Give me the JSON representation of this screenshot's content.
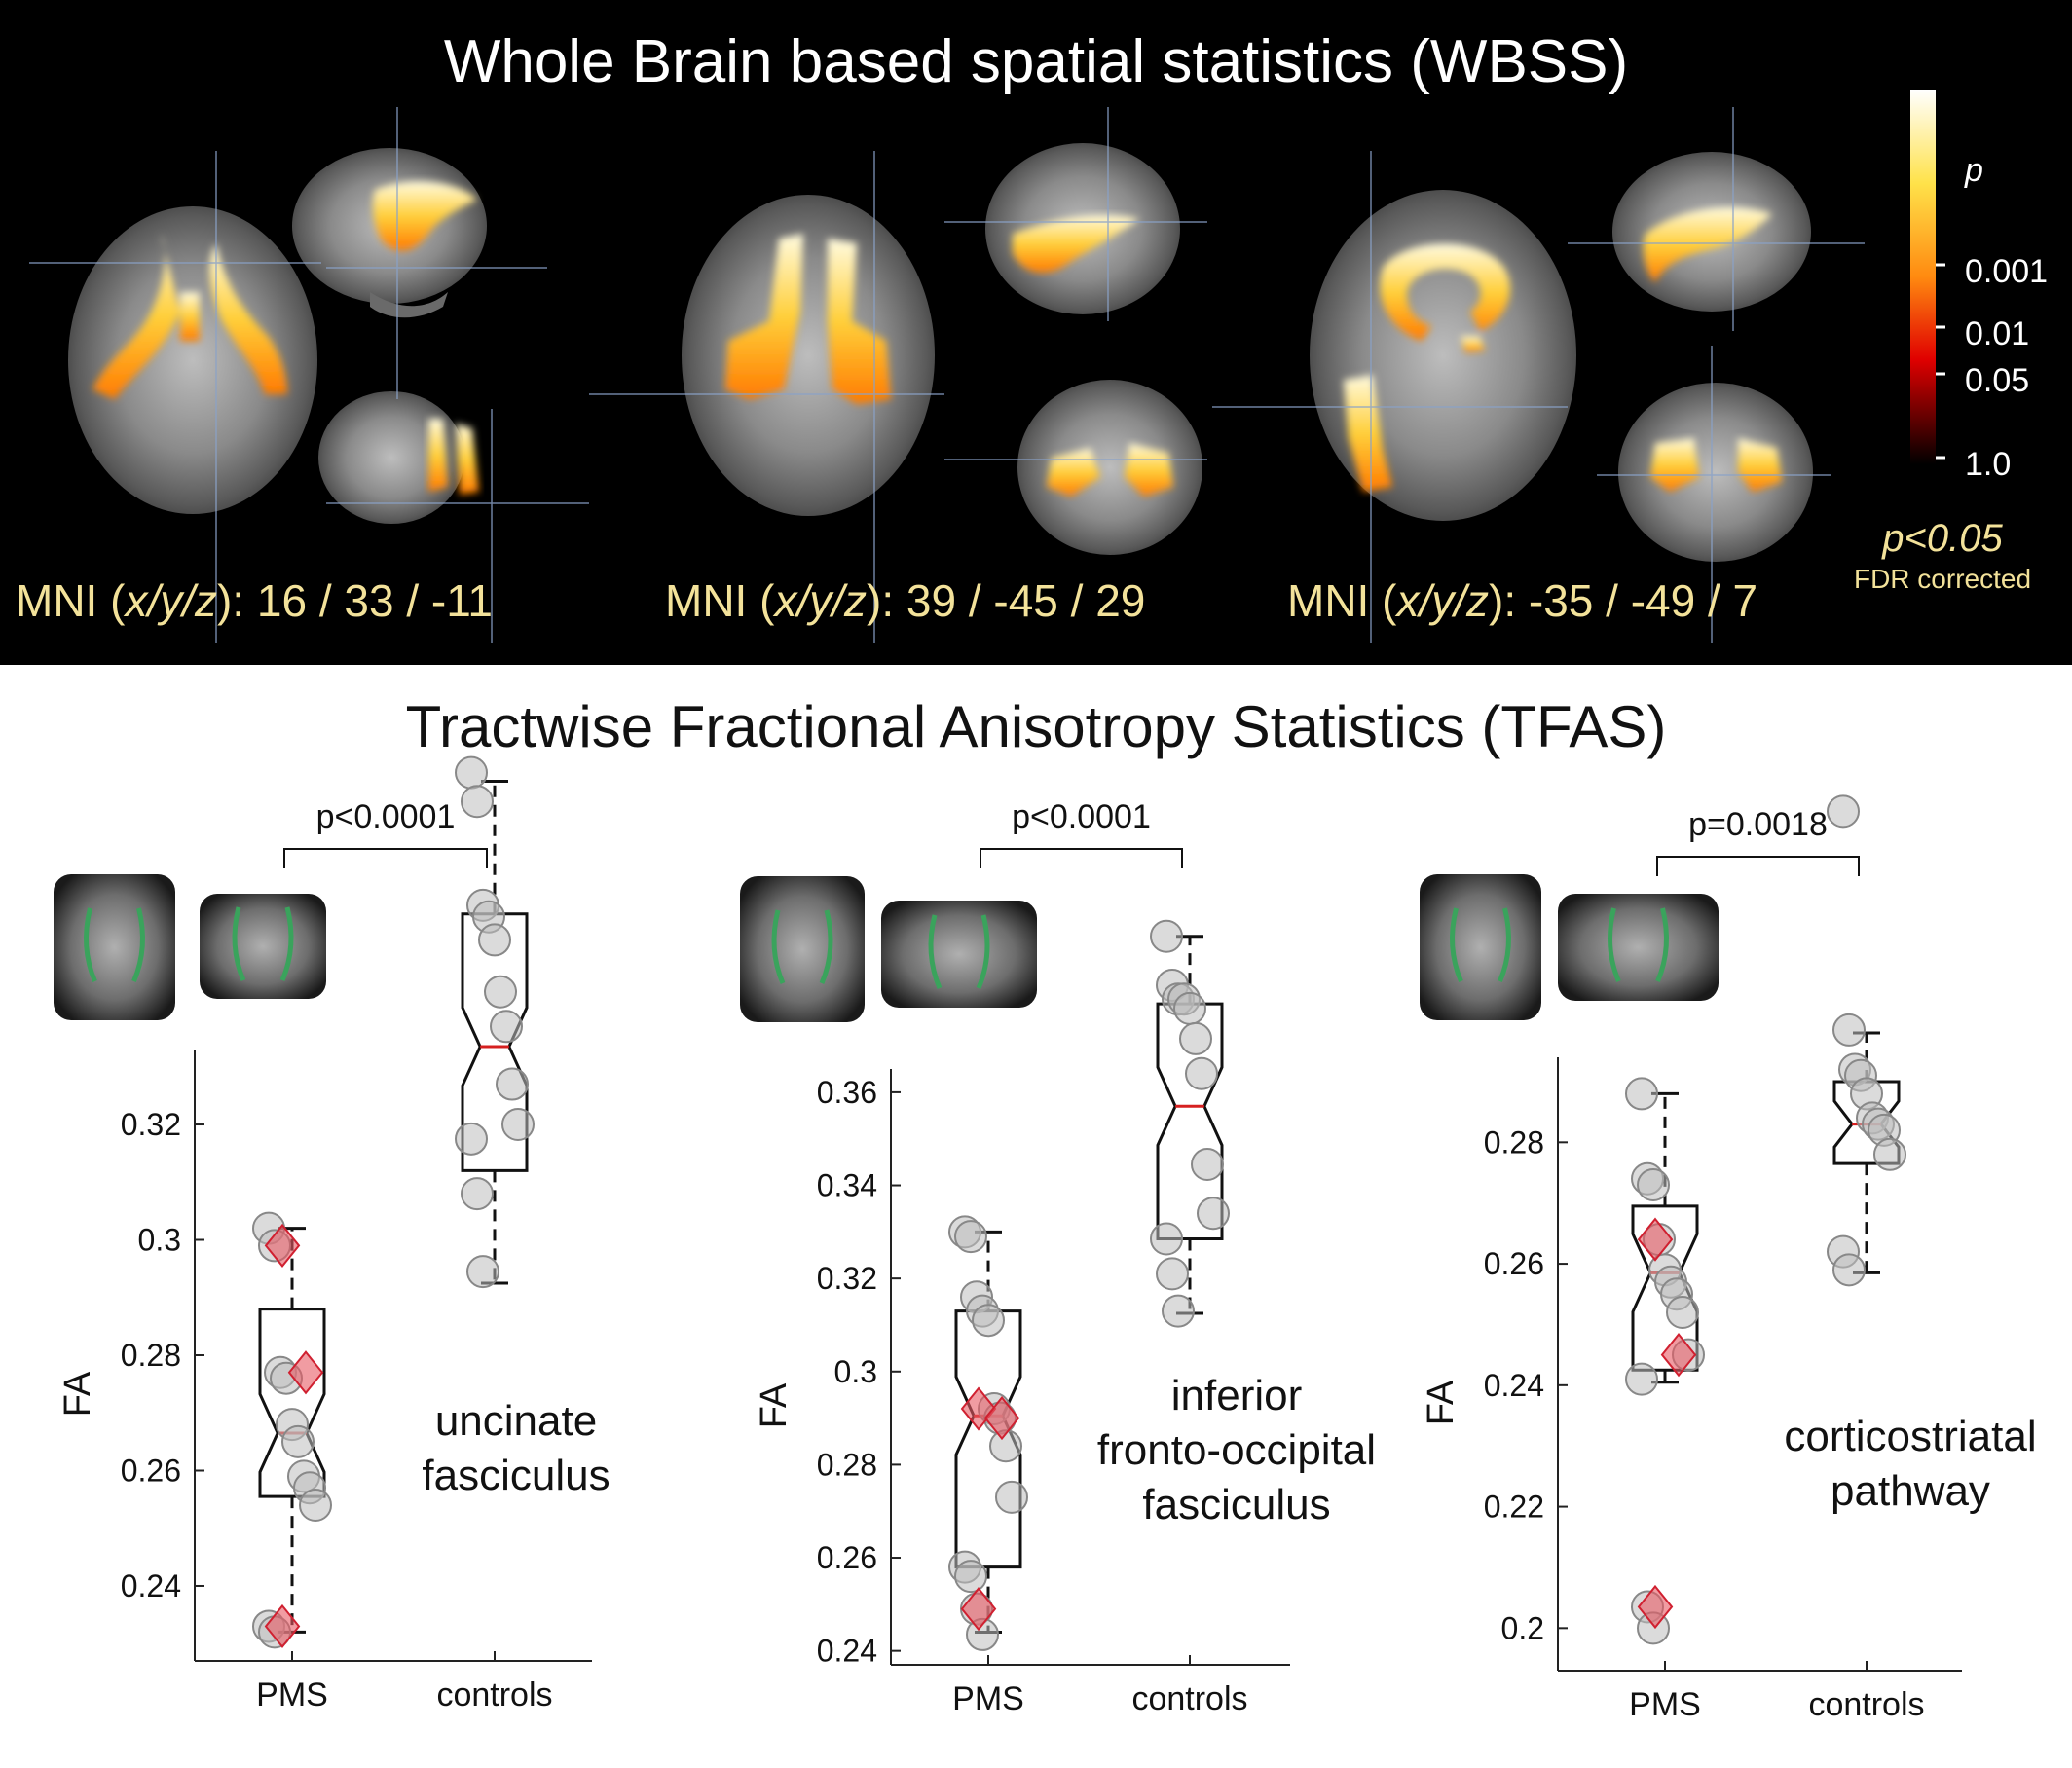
{
  "wbss": {
    "title": "Whole Brain based spatial statistics (WBSS)",
    "mni_label": "MNI",
    "mni_axes": "x/y/z",
    "coords": [
      "16 / 33 / -11",
      "39 / -45 / 29",
      "-35 / -49 / 7"
    ],
    "colorbar": {
      "label": "p",
      "ticks": [
        "0.001",
        "0.01",
        "0.05",
        "1.0"
      ],
      "threshold": "p<0.05",
      "correction": "FDR corrected",
      "colors": [
        "#ffffff",
        "#ffe24a",
        "#ff8a10",
        "#e00000",
        "#000000"
      ]
    }
  },
  "tfas": {
    "title": "Tractwise Fractional Anisotropy Statistics (TFAS)"
  },
  "chart_data": [
    {
      "type": "box",
      "tract": "uncinate fasciculus",
      "ylabel": "FA",
      "categories": [
        "PMS",
        "controls"
      ],
      "ylim": [
        0.227,
        0.333
      ],
      "yticks": [
        "0.24",
        "0.26",
        "0.28",
        "0.3",
        "0.32"
      ],
      "pvalue": "p<0.0001",
      "groups": [
        {
          "name": "PMS",
          "whisker_low": 0.232,
          "q1": 0.2555,
          "median": 0.2665,
          "q3": 0.288,
          "whisker_high": 0.302,
          "points": [
            0.302,
            0.299,
            0.277,
            0.276,
            0.268,
            0.265,
            0.259,
            0.257,
            0.254,
            0.233,
            0.232
          ],
          "highlighted": [
            0.299,
            0.277,
            0.233
          ]
        },
        {
          "name": "controls",
          "whisker_low": 0.2925,
          "q1": 0.312,
          "median": 0.3335,
          "q3": 0.3565,
          "whisker_high": 0.3795,
          "points": [
            0.381,
            0.376,
            0.358,
            0.356,
            0.352,
            0.343,
            0.337,
            0.327,
            0.32,
            0.3175,
            0.308,
            0.2945
          ]
        }
      ]
    },
    {
      "type": "box",
      "tract": "inferior fronto-occipital fasciculus",
      "ylabel": "FA",
      "categories": [
        "PMS",
        "controls"
      ],
      "ylim": [
        0.237,
        0.365
      ],
      "yticks": [
        "0.24",
        "0.26",
        "0.28",
        "0.3",
        "0.32",
        "0.34",
        "0.36"
      ],
      "pvalue": "p<0.0001",
      "groups": [
        {
          "name": "PMS",
          "whisker_low": 0.244,
          "q1": 0.258,
          "median": 0.2905,
          "q3": 0.313,
          "whisker_high": 0.33,
          "points": [
            0.33,
            0.329,
            0.316,
            0.313,
            0.311,
            0.292,
            0.29,
            0.284,
            0.273,
            0.258,
            0.256,
            0.249,
            0.2435
          ],
          "highlighted": [
            0.292,
            0.29,
            0.249
          ]
        },
        {
          "name": "controls",
          "whisker_low": 0.3125,
          "q1": 0.3285,
          "median": 0.357,
          "q3": 0.379,
          "whisker_high": 0.3935,
          "points": [
            0.3935,
            0.383,
            0.38,
            0.38,
            0.378,
            0.3715,
            0.364,
            0.3445,
            0.334,
            0.3285,
            0.321,
            0.313
          ]
        }
      ]
    },
    {
      "type": "box",
      "tract": "corticostriatal pathway",
      "ylabel": "FA",
      "categories": [
        "PMS",
        "controls"
      ],
      "ylim": [
        0.193,
        0.294
      ],
      "yticks": [
        "0.2",
        "0.22",
        "0.24",
        "0.26",
        "0.28"
      ],
      "pvalue": "p=0.0018",
      "groups": [
        {
          "name": "PMS",
          "whisker_low": 0.2405,
          "q1": 0.2425,
          "median": 0.2585,
          "q3": 0.2695,
          "whisker_high": 0.288,
          "points": [
            0.288,
            0.274,
            0.273,
            0.264,
            0.259,
            0.257,
            0.255,
            0.252,
            0.245,
            0.241,
            0.2035,
            0.2
          ],
          "highlighted": [
            0.264,
            0.245,
            0.2035
          ]
        },
        {
          "name": "controls",
          "whisker_low": 0.2585,
          "q1": 0.2765,
          "median": 0.283,
          "q3": 0.29,
          "whisker_high": 0.298,
          "points": [
            0.3345,
            0.2985,
            0.292,
            0.291,
            0.288,
            0.284,
            0.283,
            0.282,
            0.278,
            0.262,
            0.259
          ]
        }
      ]
    }
  ]
}
